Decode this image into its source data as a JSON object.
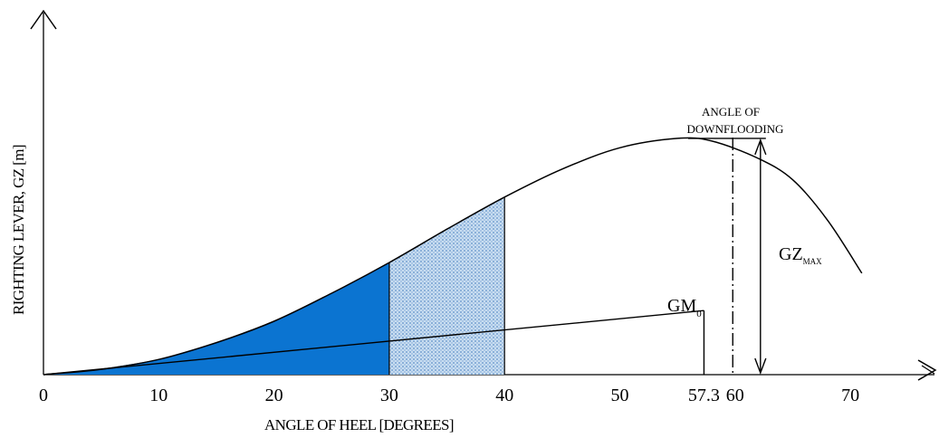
{
  "chart_data": {
    "type": "area",
    "title": "",
    "xlabel": "ANGLE OF HEEL [DEGREES]",
    "ylabel": "RIGHTING LEVER, GZ [m]",
    "x_ticks": [
      "0",
      "10",
      "20",
      "30",
      "40",
      "50",
      "57.3",
      "60",
      "70"
    ],
    "xlim": [
      0,
      78
    ],
    "ylim": [
      0,
      1
    ],
    "grid": false,
    "gz_curve": {
      "x": [
        0,
        5,
        10,
        15,
        20,
        25,
        30,
        35,
        40,
        45,
        50,
        55,
        58,
        62,
        65,
        68,
        71
      ],
      "y": [
        0,
        0.02,
        0.057,
        0.12,
        0.2,
        0.305,
        0.42,
        0.545,
        0.665,
        0.77,
        0.85,
        0.885,
        0.875,
        0.81,
        0.73,
        0.58,
        0.38
      ]
    },
    "gm0_line": {
      "from": [
        0,
        0
      ],
      "to": [
        57.3,
        0.24
      ],
      "label_main": "GM",
      "label_sub": "0"
    },
    "shaded_areas": [
      {
        "from": 0,
        "to": 30,
        "fill": "#0b74d1"
      },
      {
        "from": 30,
        "to": 40,
        "fill": "#c8ddf0"
      }
    ],
    "downflooding": {
      "x": 59.8,
      "label_line1": "ANGLE OF",
      "label_line2": "DOWNFLOODING"
    },
    "gz_max": {
      "x": 62.2,
      "value": 0.885,
      "label_main": "GZ",
      "label_sub": "MAX"
    },
    "colors": {
      "axis": "#000000",
      "dark_fill": "#0b74d1",
      "light_fill": "#c8ddf0",
      "dots": "#5f8fc9"
    }
  }
}
